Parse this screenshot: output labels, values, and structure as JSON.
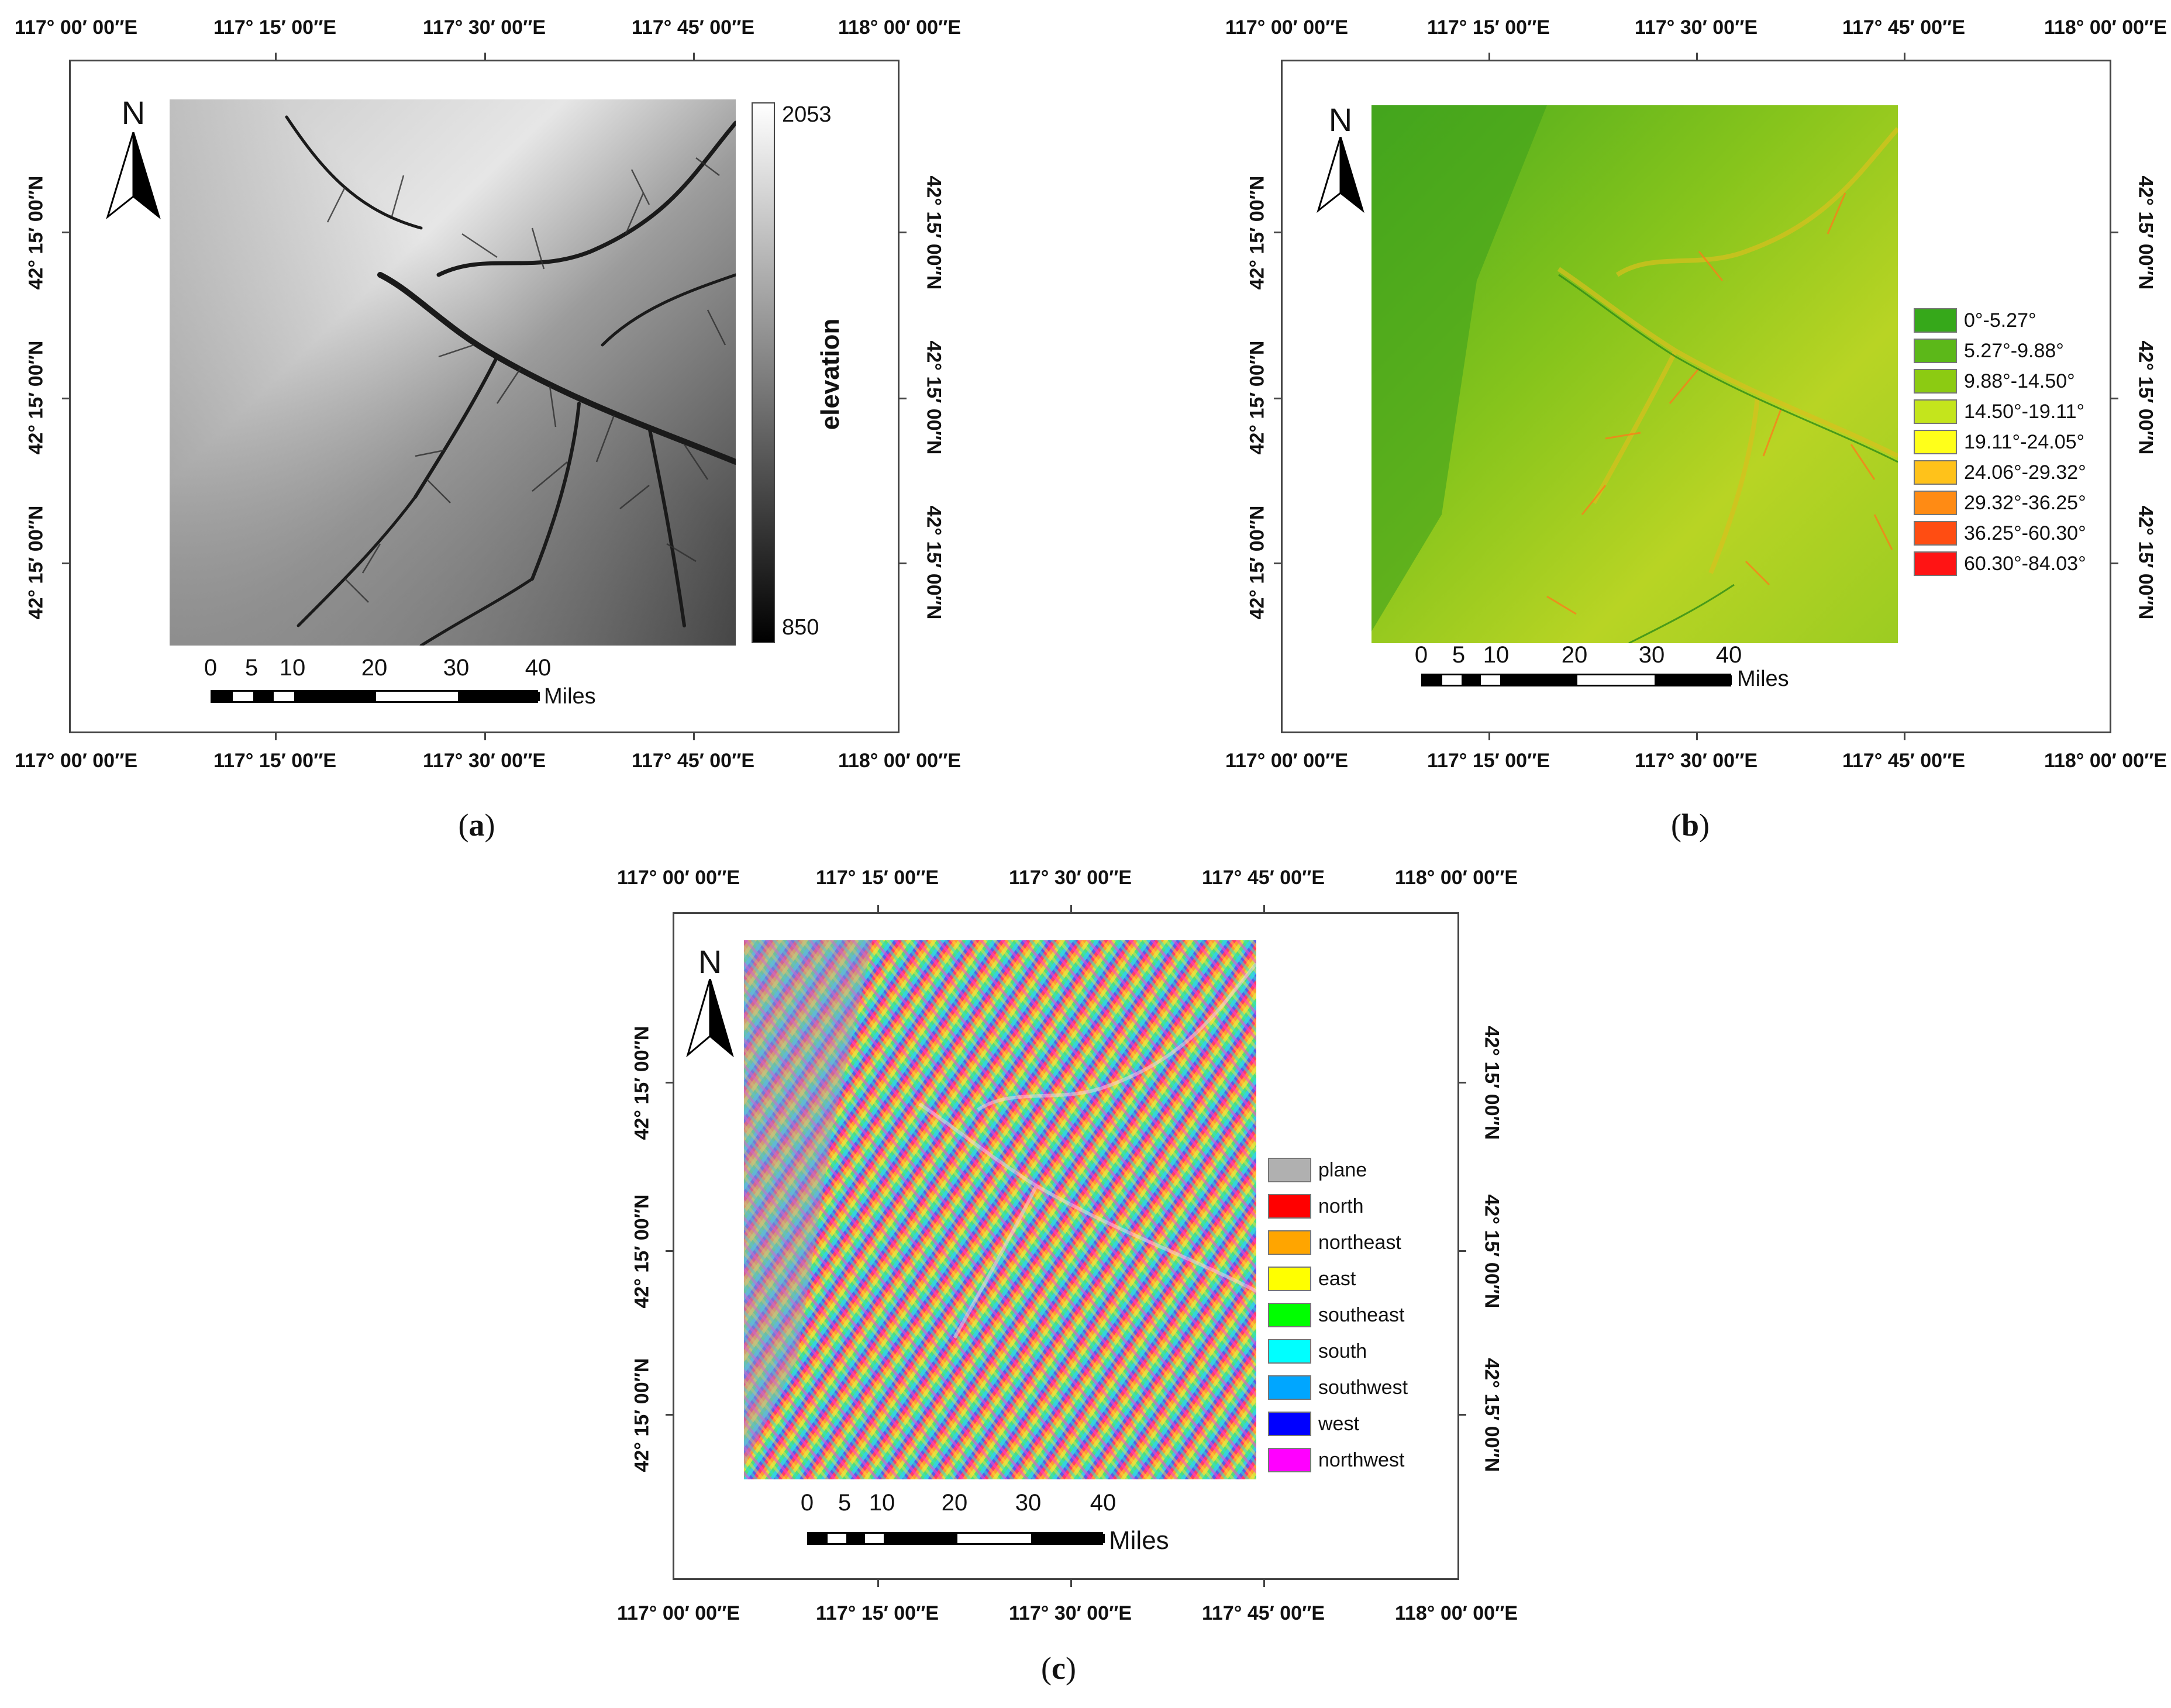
{
  "lon_labels": [
    "117° 00′ 00″E",
    "117° 15′ 00″E",
    "117° 30′ 00″E",
    "117° 45′ 00″E",
    "118° 00′ 00″E"
  ],
  "lat_label": "42° 15′ 00″N",
  "north_label": "N",
  "scale": {
    "ticks": [
      "0",
      "5",
      "10",
      "20",
      "30",
      "40"
    ],
    "unit": "Miles"
  },
  "panel_a": {
    "caption_letter": "a",
    "colorbar": {
      "title": "elevation",
      "max": "2053",
      "min": "850",
      "low_color": "#000000",
      "high_color": "#ffffff"
    }
  },
  "panel_b": {
    "caption_letter": "b",
    "legend": [
      {
        "label": "0°-5.27°",
        "color": "#36a81a"
      },
      {
        "label": "5.27°-9.88°",
        "color": "#5cb819"
      },
      {
        "label": "9.88°-14.50°",
        "color": "#8ccb12"
      },
      {
        "label": "14.50°-19.11°",
        "color": "#c4e51c"
      },
      {
        "label": "19.11°-24.05°",
        "color": "#ffff1a"
      },
      {
        "label": "24.06°-29.32°",
        "color": "#ffc21a"
      },
      {
        "label": "29.32°-36.25°",
        "color": "#ff8b14"
      },
      {
        "label": "36.25°-60.30°",
        "color": "#ff4d12"
      },
      {
        "label": "60.30°-84.03°",
        "color": "#ff1414"
      }
    ]
  },
  "panel_c": {
    "caption_letter": "c",
    "legend": [
      {
        "label": "plane",
        "color": "#b0b0b0"
      },
      {
        "label": "north",
        "color": "#ff0000"
      },
      {
        "label": "northeast",
        "color": "#ffa500"
      },
      {
        "label": "east",
        "color": "#ffff00"
      },
      {
        "label": "southeast",
        "color": "#00ff00"
      },
      {
        "label": "south",
        "color": "#00ffff"
      },
      {
        "label": "southwest",
        "color": "#00a6ff"
      },
      {
        "label": "west",
        "color": "#0000ff"
      },
      {
        "label": "northwest",
        "color": "#ff00ff"
      }
    ]
  }
}
